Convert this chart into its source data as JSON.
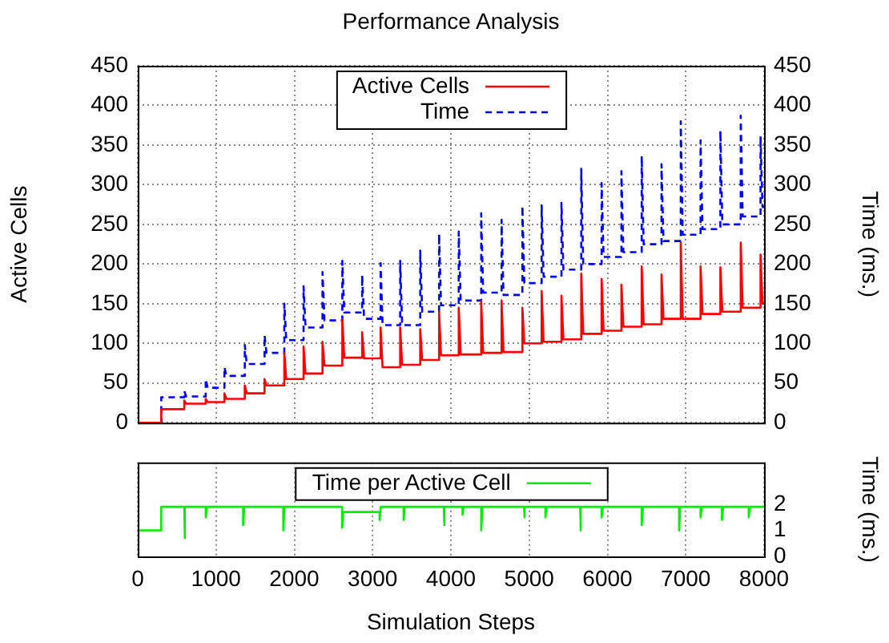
{
  "chart_data": [
    {
      "type": "line",
      "title": "Performance Analysis",
      "ylabel": "Active Cells",
      "y2label": "Time (ms.)",
      "xlim": [
        0,
        8000
      ],
      "xticks": [
        0,
        1000,
        2000,
        3000,
        4000,
        5000,
        6000,
        7000,
        8000
      ],
      "ylim": [
        0,
        450
      ],
      "yticks": [
        0,
        50,
        100,
        150,
        200,
        250,
        300,
        350,
        400,
        450
      ],
      "y2lim": [
        0,
        450
      ],
      "y2ticks": [
        0,
        50,
        100,
        150,
        200,
        250,
        300,
        350,
        400,
        450
      ],
      "tick_labels": "y",
      "grid": true,
      "legend": "top",
      "marker": "none",
      "series": [
        {
          "name": "Active Cells",
          "color": "#ff0000",
          "line_style": "solid",
          "x": [
            0,
            300,
            300,
            594,
            594,
            619,
            868,
            868,
            893,
            1107,
            1107,
            1132,
            1367,
            1367,
            1392,
            1620,
            1620,
            1645,
            1872,
            1872,
            1897,
            2118,
            2118,
            2143,
            2360,
            2360,
            2385,
            2613,
            2613,
            2638,
            2866,
            2866,
            2891,
            3102,
            3102,
            3127,
            3352,
            3352,
            3377,
            3608,
            3608,
            3633,
            3849,
            3849,
            3874,
            4100,
            4100,
            4125,
            4387,
            4387,
            4412,
            4647,
            4647,
            4672,
            4913,
            4913,
            4938,
            5159,
            5159,
            5184,
            5412,
            5412,
            5437,
            5665,
            5665,
            5690,
            5925,
            5925,
            5950,
            6178,
            6178,
            6203,
            6437,
            6437,
            6462,
            6690,
            6690,
            6715,
            6936,
            6936,
            6961,
            7189,
            7189,
            7214,
            7442,
            7442,
            7467,
            7702,
            7702,
            7727,
            7955,
            7955,
            7980,
            8000
          ],
          "values": [
            0,
            0,
            17,
            17,
            28,
            24,
            24,
            30,
            26,
            26,
            37,
            30,
            30,
            47,
            37,
            37,
            55,
            47,
            47,
            88,
            55,
            55,
            96,
            62,
            62,
            102,
            72,
            72,
            130,
            82,
            82,
            114,
            81,
            81,
            120,
            70,
            70,
            120,
            73,
            73,
            118,
            79,
            79,
            140,
            85,
            85,
            145,
            86,
            86,
            153,
            88,
            88,
            154,
            89,
            89,
            145,
            100,
            100,
            166,
            102,
            102,
            160,
            105,
            105,
            188,
            112,
            112,
            181,
            116,
            116,
            174,
            121,
            121,
            197,
            124,
            124,
            187,
            131,
            131,
            227,
            131,
            131,
            197,
            137,
            137,
            196,
            140,
            140,
            227,
            145,
            145,
            212,
            150,
            150
          ]
        },
        {
          "name": "Time",
          "color": "#0000ff",
          "line_style": "dashed",
          "axis": "y2",
          "x": [
            0,
            300,
            300,
            594,
            594,
            619,
            868,
            868,
            893,
            1107,
            1107,
            1132,
            1367,
            1367,
            1392,
            1620,
            1620,
            1645,
            1872,
            1872,
            1897,
            2118,
            2118,
            2143,
            2360,
            2360,
            2385,
            2613,
            2613,
            2638,
            2866,
            2866,
            2891,
            3102,
            3102,
            3127,
            3352,
            3352,
            3377,
            3608,
            3608,
            3633,
            3849,
            3849,
            3874,
            4100,
            4100,
            4125,
            4387,
            4387,
            4412,
            4647,
            4647,
            4672,
            4913,
            4913,
            4938,
            5159,
            5159,
            5184,
            5412,
            5412,
            5437,
            5665,
            5665,
            5690,
            5925,
            5925,
            5950,
            6178,
            6178,
            6203,
            6437,
            6437,
            6462,
            6690,
            6690,
            6715,
            6936,
            6936,
            6961,
            7189,
            7189,
            7214,
            7442,
            7442,
            7467,
            7702,
            7702,
            7727,
            7955,
            7955,
            7980,
            8000
          ],
          "values": [
            0,
            0,
            32,
            32,
            40,
            33,
            33,
            55,
            44,
            44,
            70,
            59,
            59,
            98,
            74,
            74,
            110,
            88,
            88,
            150,
            104,
            104,
            172,
            120,
            120,
            190,
            129,
            129,
            204,
            139,
            139,
            186,
            131,
            131,
            201,
            123,
            123,
            204,
            123,
            123,
            217,
            140,
            140,
            238,
            148,
            148,
            241,
            154,
            154,
            264,
            164,
            164,
            256,
            161,
            161,
            273,
            176,
            176,
            274,
            184,
            184,
            277,
            193,
            193,
            320,
            200,
            200,
            302,
            209,
            209,
            317,
            215,
            215,
            336,
            225,
            225,
            326,
            229,
            229,
            380,
            237,
            237,
            356,
            244,
            244,
            368,
            250,
            250,
            387,
            260,
            260,
            361,
            272,
            272
          ]
        }
      ]
    },
    {
      "type": "line",
      "xlabel": "Simulation Steps",
      "y2label": "Time (ms.)",
      "xlim": [
        0,
        8000
      ],
      "xticks": [
        0,
        1000,
        2000,
        3000,
        4000,
        5000,
        6000,
        7000,
        8000
      ],
      "y2lim": [
        0,
        3.6
      ],
      "y2ticks": [
        0,
        1,
        2
      ],
      "grid": "x",
      "legend": "top",
      "marker": "none",
      "series": [
        {
          "name": "Time per Active Cell",
          "color": "#00ee00",
          "line_style": "solid",
          "axis": "y2",
          "x": [
            0,
            300,
            300,
            594,
            594,
            609,
            868,
            868,
            883,
            1346,
            1346,
            1361,
            1859,
            1859,
            1874,
            2610,
            2610,
            2625,
            3089,
            3089,
            3104,
            3396,
            3396,
            3411,
            3909,
            3909,
            3924,
            4148,
            4148,
            4163,
            4387,
            4387,
            4402,
            4934,
            4934,
            4949,
            5207,
            5207,
            5222,
            5651,
            5651,
            5666,
            5925,
            5925,
            5940,
            6437,
            6437,
            6452,
            6915,
            6915,
            6930,
            7189,
            7189,
            7204,
            7462,
            7462,
            7477,
            7804,
            7804,
            7819,
            8000
          ],
          "values": [
            1.0,
            1.0,
            1.9,
            1.9,
            0.7,
            1.9,
            1.9,
            1.5,
            1.9,
            1.9,
            1.2,
            1.9,
            1.9,
            1.0,
            1.9,
            1.9,
            1.1,
            1.7,
            1.7,
            1.4,
            1.9,
            1.9,
            1.4,
            1.9,
            1.9,
            1.2,
            1.9,
            1.9,
            1.6,
            1.9,
            1.9,
            1.0,
            1.9,
            1.9,
            1.5,
            1.9,
            1.9,
            1.5,
            1.9,
            1.9,
            1.0,
            1.9,
            1.9,
            1.5,
            1.9,
            1.9,
            1.2,
            1.9,
            1.9,
            1.0,
            1.9,
            1.9,
            1.5,
            1.9,
            1.9,
            1.4,
            1.9,
            1.9,
            1.5,
            1.9,
            1.9
          ]
        }
      ]
    }
  ]
}
